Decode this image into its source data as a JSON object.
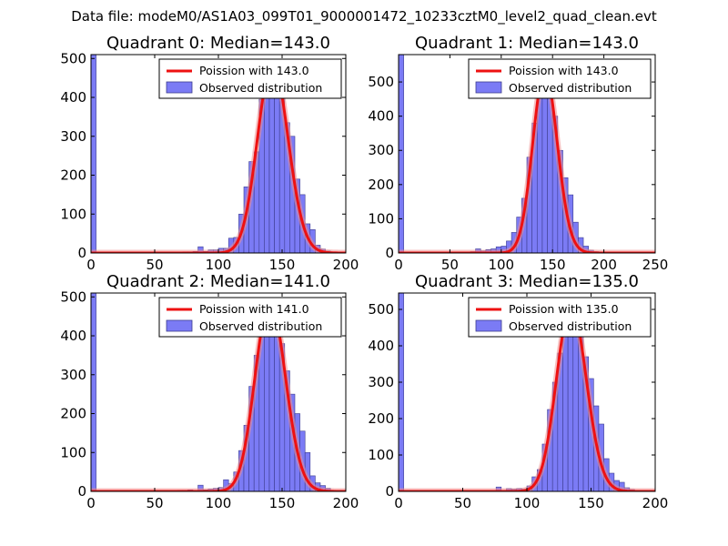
{
  "suptitle": "Data file: modeM0/AS1A03_099T01_9000001472_10233cztM0_level2_quad_clean.evt",
  "colors": {
    "bar_fill": "#7b7bf5",
    "bar_edge": "#3d3d90",
    "fit_line": "#ee1111",
    "fit_line_light": "#f08c8c",
    "axes": "#000000",
    "background": "#ffffff"
  },
  "legend": {
    "fit_label_prefix": "Poission with ",
    "observed_label": "Observed distribution"
  },
  "chart_data": [
    {
      "type": "bar",
      "title": "Quadrant 0: Median=143.0",
      "median": 143.0,
      "fit_label": "Poission with 143.0",
      "xlim": [
        0,
        200
      ],
      "ylim": [
        0,
        510
      ],
      "xticks": [
        0,
        50,
        100,
        150,
        200
      ],
      "yticks": [
        0,
        100,
        200,
        300,
        400,
        500
      ],
      "bin_width": 4,
      "spike": {
        "x": 0,
        "value": 510
      },
      "bins": [
        {
          "x": 72,
          "value": 3
        },
        {
          "x": 76,
          "value": 3
        },
        {
          "x": 80,
          "value": 4
        },
        {
          "x": 84,
          "value": 16
        },
        {
          "x": 88,
          "value": 4
        },
        {
          "x": 92,
          "value": 8
        },
        {
          "x": 96,
          "value": 8
        },
        {
          "x": 100,
          "value": 12
        },
        {
          "x": 104,
          "value": 12
        },
        {
          "x": 108,
          "value": 38
        },
        {
          "x": 112,
          "value": 40
        },
        {
          "x": 116,
          "value": 100
        },
        {
          "x": 120,
          "value": 170
        },
        {
          "x": 124,
          "value": 235
        },
        {
          "x": 128,
          "value": 260
        },
        {
          "x": 132,
          "value": 395
        },
        {
          "x": 136,
          "value": 440
        },
        {
          "x": 140,
          "value": 470
        },
        {
          "x": 144,
          "value": 455
        },
        {
          "x": 148,
          "value": 405
        },
        {
          "x": 152,
          "value": 335
        },
        {
          "x": 156,
          "value": 300
        },
        {
          "x": 160,
          "value": 190
        },
        {
          "x": 164,
          "value": 150
        },
        {
          "x": 168,
          "value": 75
        },
        {
          "x": 172,
          "value": 60
        },
        {
          "x": 176,
          "value": 20
        },
        {
          "x": 180,
          "value": 10
        },
        {
          "x": 184,
          "value": 5
        },
        {
          "x": 188,
          "value": 3
        }
      ]
    },
    {
      "type": "bar",
      "title": "Quadrant 1: Median=143.0",
      "median": 143.0,
      "fit_label": "Poission with 143.0",
      "xlim": [
        0,
        250
      ],
      "ylim": [
        0,
        580
      ],
      "xticks": [
        0,
        50,
        100,
        150,
        200,
        250
      ],
      "yticks": [
        0,
        100,
        200,
        300,
        400,
        500
      ],
      "bin_width": 5,
      "spike": {
        "x": 0,
        "value": 580
      },
      "bins": [
        {
          "x": 60,
          "value": 2
        },
        {
          "x": 65,
          "value": 3
        },
        {
          "x": 70,
          "value": 4
        },
        {
          "x": 75,
          "value": 12
        },
        {
          "x": 80,
          "value": 6
        },
        {
          "x": 85,
          "value": 10
        },
        {
          "x": 90,
          "value": 12
        },
        {
          "x": 95,
          "value": 18
        },
        {
          "x": 100,
          "value": 20
        },
        {
          "x": 105,
          "value": 35
        },
        {
          "x": 110,
          "value": 60
        },
        {
          "x": 115,
          "value": 105
        },
        {
          "x": 120,
          "value": 160
        },
        {
          "x": 125,
          "value": 280
        },
        {
          "x": 130,
          "value": 380
        },
        {
          "x": 135,
          "value": 500
        },
        {
          "x": 140,
          "value": 510
        },
        {
          "x": 145,
          "value": 480
        },
        {
          "x": 150,
          "value": 400
        },
        {
          "x": 155,
          "value": 300
        },
        {
          "x": 160,
          "value": 220
        },
        {
          "x": 165,
          "value": 170
        },
        {
          "x": 170,
          "value": 90
        },
        {
          "x": 175,
          "value": 45
        },
        {
          "x": 180,
          "value": 20
        },
        {
          "x": 185,
          "value": 8
        },
        {
          "x": 190,
          "value": 4
        }
      ]
    },
    {
      "type": "bar",
      "title": "Quadrant 2: Median=141.0",
      "median": 141.0,
      "fit_label": "Poission with 141.0",
      "xlim": [
        0,
        200
      ],
      "ylim": [
        0,
        510
      ],
      "xticks": [
        0,
        50,
        100,
        150,
        200
      ],
      "yticks": [
        0,
        100,
        200,
        300,
        400,
        500
      ],
      "bin_width": 4,
      "spike": {
        "x": 0,
        "value": 510
      },
      "bins": [
        {
          "x": 68,
          "value": 3
        },
        {
          "x": 72,
          "value": 3
        },
        {
          "x": 76,
          "value": 4
        },
        {
          "x": 84,
          "value": 16
        },
        {
          "x": 88,
          "value": 4
        },
        {
          "x": 92,
          "value": 6
        },
        {
          "x": 96,
          "value": 8
        },
        {
          "x": 100,
          "value": 10
        },
        {
          "x": 104,
          "value": 30
        },
        {
          "x": 108,
          "value": 20
        },
        {
          "x": 112,
          "value": 50
        },
        {
          "x": 116,
          "value": 105
        },
        {
          "x": 120,
          "value": 170
        },
        {
          "x": 124,
          "value": 270
        },
        {
          "x": 128,
          "value": 350
        },
        {
          "x": 132,
          "value": 440
        },
        {
          "x": 136,
          "value": 465
        },
        {
          "x": 140,
          "value": 470
        },
        {
          "x": 144,
          "value": 450
        },
        {
          "x": 148,
          "value": 380
        },
        {
          "x": 152,
          "value": 310
        },
        {
          "x": 156,
          "value": 250
        },
        {
          "x": 160,
          "value": 200
        },
        {
          "x": 164,
          "value": 155
        },
        {
          "x": 168,
          "value": 100
        },
        {
          "x": 172,
          "value": 40
        },
        {
          "x": 176,
          "value": 22
        },
        {
          "x": 180,
          "value": 15
        },
        {
          "x": 184,
          "value": 8
        },
        {
          "x": 188,
          "value": 3
        }
      ]
    },
    {
      "type": "bar",
      "title": "Quadrant 3: Median=135.0",
      "median": 135.0,
      "fit_label": "Poission with 135.0",
      "xlim": [
        0,
        200
      ],
      "ylim": [
        0,
        545
      ],
      "xticks": [
        0,
        50,
        100,
        150,
        200
      ],
      "yticks": [
        0,
        100,
        200,
        300,
        400,
        500
      ],
      "bin_width": 4,
      "spike": {
        "x": 0,
        "value": 545
      },
      "bins": [
        {
          "x": 76,
          "value": 12
        },
        {
          "x": 80,
          "value": 3
        },
        {
          "x": 84,
          "value": 8
        },
        {
          "x": 88,
          "value": 6
        },
        {
          "x": 92,
          "value": 8
        },
        {
          "x": 96,
          "value": 6
        },
        {
          "x": 100,
          "value": 15
        },
        {
          "x": 104,
          "value": 40
        },
        {
          "x": 108,
          "value": 60
        },
        {
          "x": 112,
          "value": 130
        },
        {
          "x": 116,
          "value": 225
        },
        {
          "x": 120,
          "value": 300
        },
        {
          "x": 124,
          "value": 380
        },
        {
          "x": 128,
          "value": 440
        },
        {
          "x": 132,
          "value": 490
        },
        {
          "x": 136,
          "value": 470
        },
        {
          "x": 140,
          "value": 440
        },
        {
          "x": 144,
          "value": 370
        },
        {
          "x": 148,
          "value": 310
        },
        {
          "x": 152,
          "value": 235
        },
        {
          "x": 156,
          "value": 185
        },
        {
          "x": 160,
          "value": 90
        },
        {
          "x": 164,
          "value": 50
        },
        {
          "x": 168,
          "value": 30
        },
        {
          "x": 172,
          "value": 25
        },
        {
          "x": 176,
          "value": 10
        },
        {
          "x": 180,
          "value": 5
        }
      ]
    }
  ]
}
